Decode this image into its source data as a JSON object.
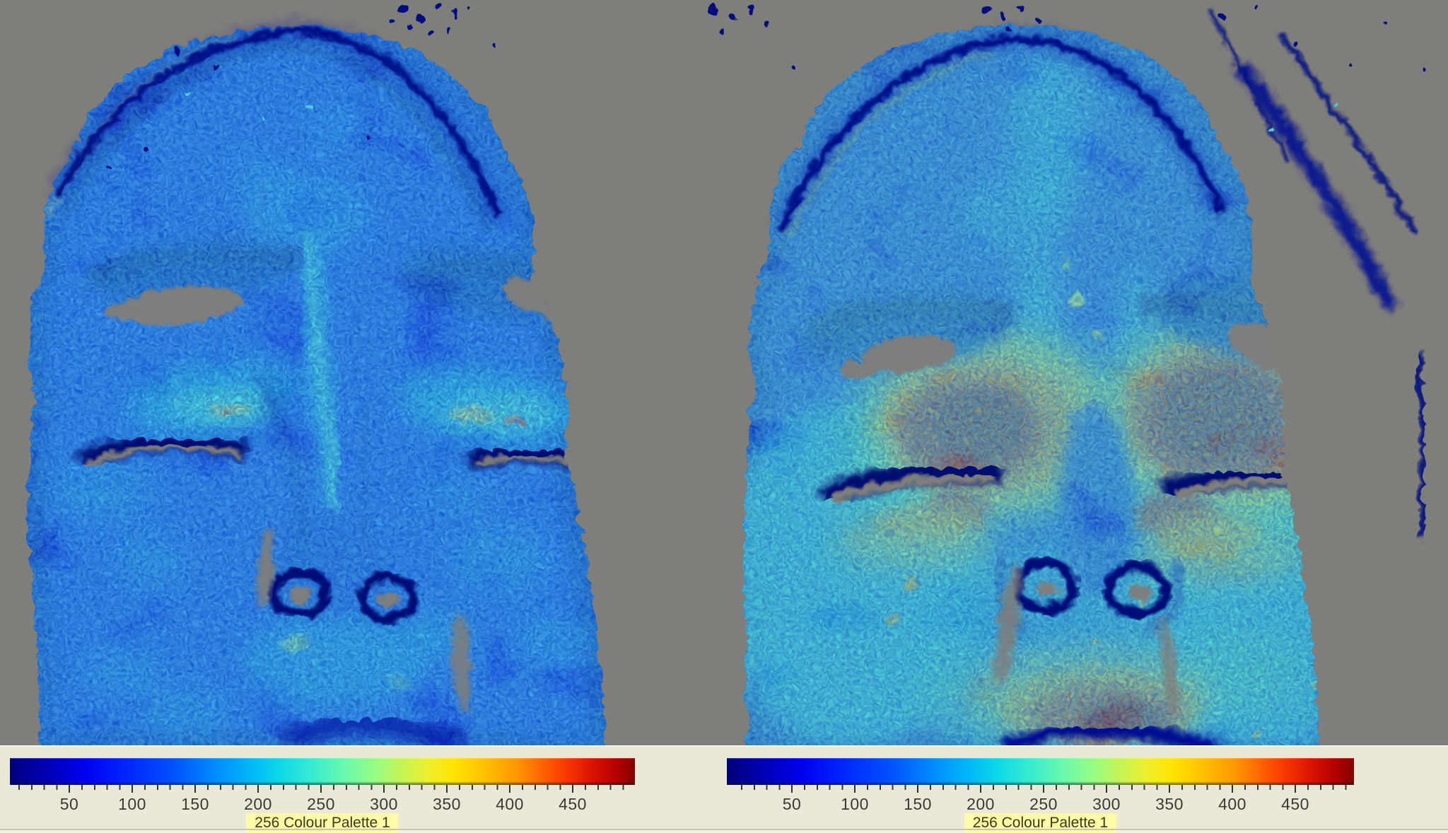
{
  "colors": {
    "background_gray": "#7e7e7b",
    "panel_background": "#ece8d8",
    "palette_label_background": "#fbfba8",
    "tick_text": "#3a3a35",
    "colormap_low": "#00007c",
    "colormap_high": "#840000"
  },
  "colorbars": {
    "left": {
      "tick_labels": [
        "50",
        "100",
        "150",
        "200",
        "250",
        "300",
        "350",
        "400",
        "450"
      ],
      "palette_label": "256 Colour Palette 1"
    },
    "right": {
      "tick_labels": [
        "50",
        "100",
        "150",
        "200",
        "250",
        "300",
        "350",
        "400",
        "450"
      ],
      "palette_label": "256 Colour Palette 1"
    }
  },
  "chart_data": [
    {
      "type": "heatmap",
      "panel": "left",
      "title": "",
      "colormap": "jet-style 256 colour palette (dark blue -> blue -> cyan -> green -> yellow -> orange -> red -> dark red)",
      "legend_label": "256 Colour Palette 1",
      "legend_position": "bottom",
      "scale_ticks": [
        50,
        100,
        150,
        200,
        250,
        300,
        350,
        400,
        450
      ],
      "scale_range": [
        0,
        500
      ],
      "background": "masked gray",
      "description": "Frontal face map, eyes closed; predominantly low values",
      "regions": [
        {
          "name": "forehead",
          "value_estimate": 70
        },
        {
          "name": "cheeks",
          "value_estimate": 80
        },
        {
          "name": "glabella-nose-bridge streak",
          "value_estimate": 180
        },
        {
          "name": "under-brow periorbital bands",
          "value_estimate": 210
        },
        {
          "name": "inner periorbital hotspots",
          "value_estimate": 320
        },
        {
          "name": "eyebrows and eye slits",
          "value_estimate": 40
        },
        {
          "name": "perioral area",
          "value_estimate": 160
        }
      ]
    },
    {
      "type": "heatmap",
      "panel": "right",
      "title": "",
      "colormap": "jet-style 256 colour palette (dark blue -> blue -> cyan -> green -> yellow -> orange -> red -> dark red)",
      "legend_label": "256 Colour Palette 1",
      "legend_position": "bottom",
      "scale_ticks": [
        50,
        100,
        150,
        200,
        250,
        300,
        350,
        400,
        450
      ],
      "scale_range": [
        0,
        500
      ],
      "background": "masked gray",
      "description": "Same face with strongly elevated values around the eyes and mouth",
      "regions": [
        {
          "name": "forehead",
          "value_estimate": 120
        },
        {
          "name": "cheeks",
          "value_estimate": 200
        },
        {
          "name": "periorbital hot patches",
          "value_estimate": 460
        },
        {
          "name": "below-eye streaks",
          "value_estimate": 420
        },
        {
          "name": "perioral/upper-lip patch",
          "value_estimate": 450
        },
        {
          "name": "eyebrows and eye slits",
          "value_estimate": 40
        },
        {
          "name": "nose bridge",
          "value_estimate": 100
        }
      ]
    }
  ]
}
